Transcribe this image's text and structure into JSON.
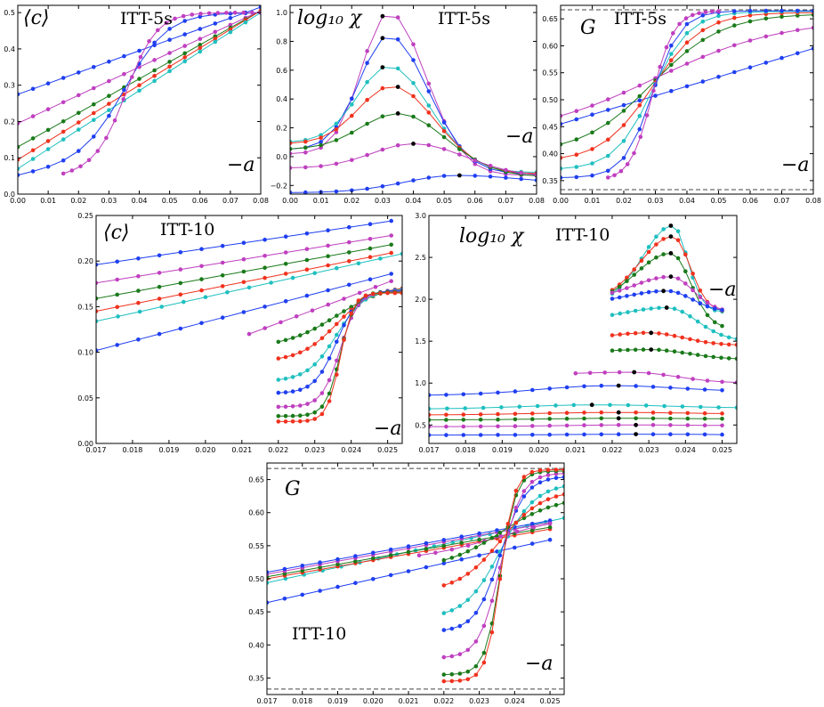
{
  "colors": {
    "blue": "#1f3ff0",
    "magenta": "#bf3fbf",
    "green": "#1a7a1a",
    "red": "#f0321e",
    "cyan": "#1fbfbf",
    "peak": "#000000",
    "axis": "#000000",
    "dash": "#444444"
  },
  "chart_data": [
    {
      "type": "line",
      "panel": "ITT-5s <c>",
      "title": "ITT-5s",
      "ylabel": "⟨c⟩",
      "xlabel": "−a",
      "xlim": [
        0,
        0.08
      ],
      "ylim": [
        0,
        0.52
      ],
      "xticks": [
        "0.00",
        "0.01",
        "0.02",
        "0.03",
        "0.04",
        "0.05",
        "0.06",
        "0.07",
        "0.08"
      ],
      "yticks": [
        "0.0",
        "0.1",
        "0.2",
        "0.3",
        "0.4",
        "0.5"
      ],
      "series": [
        {
          "color": "blue",
          "x0": 0.0,
          "x1": 0.08,
          "n": 17,
          "form": "lin",
          "y0": 0.275,
          "y1": 0.515
        },
        {
          "color": "magenta",
          "x0": 0.0,
          "x1": 0.08,
          "n": 17,
          "form": "lin",
          "y0": 0.195,
          "y1": 0.505
        },
        {
          "color": "green",
          "x0": 0.0,
          "x1": 0.08,
          "n": 17,
          "form": "lin",
          "y0": 0.13,
          "y1": 0.505
        },
        {
          "color": "red",
          "x0": 0.0,
          "x1": 0.08,
          "n": 17,
          "form": "lin",
          "y0": 0.095,
          "y1": 0.505
        },
        {
          "color": "cyan",
          "x0": 0.0,
          "x1": 0.08,
          "n": 17,
          "form": "lin",
          "y0": 0.07,
          "y1": 0.5
        },
        {
          "color": "blue",
          "x0": 0.0,
          "x1": 0.08,
          "n": 17,
          "form": "sig",
          "y0": 0.05,
          "y1": 0.5,
          "c": 0.036,
          "w": 0.007,
          "lo": 0.12
        },
        {
          "color": "magenta",
          "x0": 0.015,
          "x1": 0.08,
          "n": 24,
          "form": "sig",
          "y0": 0.05,
          "y1": 0.5,
          "c": 0.036,
          "w": 0.005,
          "lo": 0.08
        }
      ]
    },
    {
      "type": "line",
      "panel": "ITT-5s log10 chi",
      "title": "ITT-5s",
      "ylabel": "log₁₀ χ",
      "xlabel": "−a",
      "xlim": [
        0,
        0.08
      ],
      "ylim": [
        -0.26,
        1.05
      ],
      "xticks": [
        "0.00",
        "0.01",
        "0.02",
        "0.03",
        "0.04",
        "0.05",
        "0.06",
        "0.07",
        "0.08"
      ],
      "yticks": [
        "−0.2",
        "0.0",
        "0.2",
        "0.4",
        "0.6",
        "0.8",
        "1.0"
      ],
      "series": [
        {
          "color": "magenta",
          "x0": 0.0,
          "x1": 0.08,
          "n": 17,
          "form": "peak",
          "base": 0.02,
          "peak": 1.0,
          "c": 0.032,
          "wl": 0.013,
          "wr": 0.018,
          "end": -0.13
        },
        {
          "color": "blue",
          "x0": 0.0,
          "x1": 0.08,
          "n": 17,
          "form": "peak",
          "base": 0.05,
          "peak": 0.84,
          "c": 0.032,
          "wl": 0.014,
          "wr": 0.019,
          "end": -0.12
        },
        {
          "color": "cyan",
          "x0": 0.0,
          "x1": 0.08,
          "n": 17,
          "form": "peak",
          "base": 0.1,
          "peak": 0.63,
          "c": 0.032,
          "wl": 0.015,
          "wr": 0.02,
          "end": -0.11
        },
        {
          "color": "red",
          "x0": 0.0,
          "x1": 0.08,
          "n": 17,
          "form": "peak",
          "base": 0.09,
          "peak": 0.49,
          "c": 0.033,
          "wl": 0.016,
          "wr": 0.021,
          "end": -0.12
        },
        {
          "color": "green",
          "x0": 0.0,
          "x1": 0.08,
          "n": 17,
          "form": "peak",
          "base": 0.05,
          "peak": 0.3,
          "c": 0.035,
          "wl": 0.018,
          "wr": 0.023,
          "end": -0.14
        },
        {
          "color": "magenta",
          "x0": 0.0,
          "x1": 0.08,
          "n": 17,
          "form": "peak",
          "base": -0.08,
          "peak": 0.09,
          "c": 0.04,
          "wl": 0.02,
          "wr": 0.025,
          "end": -0.14
        },
        {
          "color": "blue",
          "x0": 0.0,
          "x1": 0.08,
          "n": 17,
          "form": "peak",
          "base": -0.25,
          "peak": -0.13,
          "c": 0.054,
          "wl": 0.025,
          "wr": 0.03,
          "end": -0.19
        }
      ]
    },
    {
      "type": "line",
      "panel": "ITT-5s G",
      "title": "ITT-5s",
      "ylabel": "G",
      "xlabel": "−a",
      "xlim": [
        0,
        0.08
      ],
      "ylim": [
        0.325,
        0.675
      ],
      "dashed": [
        0.6667,
        0.3333
      ],
      "xticks": [
        "0.00",
        "0.01",
        "0.02",
        "0.03",
        "0.04",
        "0.05",
        "0.06",
        "0.07",
        "0.08"
      ],
      "yticks": [
        "0.35",
        "0.40",
        "0.45",
        "0.50",
        "0.55",
        "0.60",
        "0.65"
      ],
      "series": [
        {
          "color": "blue",
          "x0": 0.0,
          "x1": 0.08,
          "n": 17,
          "form": "lin",
          "y0": 0.455,
          "y1": 0.595
        },
        {
          "color": "magenta",
          "x0": 0.0,
          "x1": 0.08,
          "n": 17,
          "form": "sig",
          "y0": 0.43,
          "y1": 0.65,
          "c": 0.03,
          "w": 0.02,
          "lo": 0.0
        },
        {
          "color": "green",
          "x0": 0.0,
          "x1": 0.08,
          "n": 17,
          "form": "sig",
          "y0": 0.4,
          "y1": 0.66,
          "c": 0.029,
          "w": 0.011,
          "lo": 0.0
        },
        {
          "color": "red",
          "x0": 0.0,
          "x1": 0.08,
          "n": 17,
          "form": "sig",
          "y0": 0.385,
          "y1": 0.662,
          "c": 0.029,
          "w": 0.008,
          "lo": 0.0
        },
        {
          "color": "cyan",
          "x0": 0.0,
          "x1": 0.08,
          "n": 17,
          "form": "sig",
          "y0": 0.37,
          "y1": 0.664,
          "c": 0.029,
          "w": 0.006,
          "lo": 0.0
        },
        {
          "color": "blue",
          "x0": 0.0,
          "x1": 0.08,
          "n": 17,
          "form": "sig",
          "y0": 0.355,
          "y1": 0.665,
          "c": 0.029,
          "w": 0.0045,
          "lo": 0.0
        },
        {
          "color": "magenta",
          "x0": 0.015,
          "x1": 0.05,
          "n": 18,
          "form": "sig",
          "y0": 0.35,
          "y1": 0.665,
          "c": 0.029,
          "w": 0.0035,
          "lo": 0.0
        }
      ]
    },
    {
      "type": "line",
      "panel": "ITT-10 <c>",
      "title": "ITT-10",
      "ylabel": "⟨c⟩",
      "xlabel": "−a",
      "xlim": [
        0.017,
        0.0254
      ],
      "ylim": [
        0,
        0.25
      ],
      "xticks": [
        "0.017",
        "0.018",
        "0.019",
        "0.020",
        "0.021",
        "0.022",
        "0.023",
        "0.024",
        "0.025"
      ],
      "yticks": [
        "0.00",
        "0.05",
        "0.10",
        "0.15",
        "0.20",
        "0.25"
      ],
      "series": [
        {
          "color": "blue",
          "x0": 0.017,
          "x1": 0.0251,
          "n": 15,
          "form": "lin",
          "y0": 0.196,
          "y1": 0.244
        },
        {
          "color": "magenta",
          "x0": 0.017,
          "x1": 0.0251,
          "n": 15,
          "form": "lin",
          "y0": 0.176,
          "y1": 0.228
        },
        {
          "color": "green",
          "x0": 0.017,
          "x1": 0.0251,
          "n": 15,
          "form": "lin",
          "y0": 0.159,
          "y1": 0.218
        },
        {
          "color": "red",
          "x0": 0.017,
          "x1": 0.0251,
          "n": 15,
          "form": "lin",
          "y0": 0.145,
          "y1": 0.209
        },
        {
          "color": "cyan",
          "x0": 0.017,
          "x1": 0.0254,
          "n": 15,
          "form": "lin",
          "y0": 0.134,
          "y1": 0.208
        },
        {
          "color": "blue",
          "x0": 0.017,
          "x1": 0.0251,
          "n": 15,
          "form": "lin",
          "y0": 0.102,
          "y1": 0.186
        },
        {
          "color": "magenta",
          "x0": 0.0212,
          "x1": 0.0251,
          "n": 10,
          "form": "lin",
          "y0": 0.12,
          "y1": 0.178
        },
        {
          "color": "green",
          "x0": 0.022,
          "x1": 0.0254,
          "n": 18,
          "form": "sig",
          "y0": 0.105,
          "y1": 0.175,
          "c": 0.0236,
          "w": 0.0007,
          "lo": 0.0
        },
        {
          "color": "red",
          "x0": 0.022,
          "x1": 0.0254,
          "n": 18,
          "form": "sig",
          "y0": 0.09,
          "y1": 0.172,
          "c": 0.0236,
          "w": 0.0005,
          "lo": 0.0
        },
        {
          "color": "cyan",
          "x0": 0.022,
          "x1": 0.0254,
          "n": 18,
          "form": "sig",
          "y0": 0.068,
          "y1": 0.17,
          "c": 0.0236,
          "w": 0.0004,
          "lo": 0.0
        },
        {
          "color": "blue",
          "x0": 0.022,
          "x1": 0.0254,
          "n": 18,
          "form": "sig",
          "y0": 0.055,
          "y1": 0.168,
          "c": 0.0236,
          "w": 0.0003,
          "lo": 0.0
        },
        {
          "color": "magenta",
          "x0": 0.022,
          "x1": 0.0254,
          "n": 18,
          "form": "sig",
          "y0": 0.04,
          "y1": 0.167,
          "c": 0.0237,
          "w": 0.00025,
          "lo": 0.0
        },
        {
          "color": "green",
          "x0": 0.022,
          "x1": 0.0254,
          "n": 18,
          "form": "sig",
          "y0": 0.03,
          "y1": 0.166,
          "c": 0.0237,
          "w": 0.0002,
          "lo": 0.0
        },
        {
          "color": "red",
          "x0": 0.022,
          "x1": 0.0254,
          "n": 18,
          "form": "sig",
          "y0": 0.024,
          "y1": 0.165,
          "c": 0.0237,
          "w": 0.00018,
          "lo": 0.0
        }
      ]
    },
    {
      "type": "line",
      "panel": "ITT-10 log10 chi",
      "title": "ITT-10",
      "ylabel": "log₁₀ χ",
      "xlabel": "−a",
      "xlim": [
        0.017,
        0.0254
      ],
      "ylim": [
        0.28,
        3.0
      ],
      "xticks": [
        "0.017",
        "0.018",
        "0.019",
        "0.020",
        "0.021",
        "0.022",
        "0.023",
        "0.024",
        "0.025"
      ],
      "yticks": [
        "0.5",
        "1.0",
        "1.5",
        "2.0",
        "2.5",
        "3.0"
      ],
      "series": [
        {
          "color": "cyan",
          "x0": 0.022,
          "x1": 0.025,
          "n": 16,
          "form": "peak",
          "base": 1.95,
          "peak": 2.88,
          "c": 0.02365,
          "wl": 0.0012,
          "wr": 0.0006,
          "end": 1.85
        },
        {
          "color": "red",
          "x0": 0.022,
          "x1": 0.025,
          "n": 16,
          "form": "peak",
          "base": 1.98,
          "peak": 2.75,
          "c": 0.02365,
          "wl": 0.0013,
          "wr": 0.0007,
          "end": 1.85
        },
        {
          "color": "green",
          "x0": 0.022,
          "x1": 0.025,
          "n": 16,
          "form": "peak",
          "base": 1.95,
          "peak": 2.55,
          "c": 0.0236,
          "wl": 0.0014,
          "wr": 0.0008,
          "end": 1.65
        },
        {
          "color": "magenta",
          "x0": 0.022,
          "x1": 0.025,
          "n": 16,
          "form": "peak",
          "base": 2.0,
          "peak": 2.27,
          "c": 0.0236,
          "wl": 0.0015,
          "wr": 0.0009,
          "end": 1.85
        },
        {
          "color": "blue",
          "x0": 0.022,
          "x1": 0.025,
          "n": 16,
          "form": "peak",
          "base": 1.95,
          "peak": 2.1,
          "c": 0.0235,
          "wl": 0.0016,
          "wr": 0.001,
          "end": 1.85
        },
        {
          "color": "cyan",
          "x0": 0.022,
          "x1": 0.0254,
          "n": 17,
          "form": "peak",
          "base": 1.75,
          "peak": 1.9,
          "c": 0.0235,
          "wl": 0.0017,
          "wr": 0.0012,
          "end": 1.5
        },
        {
          "color": "red",
          "x0": 0.022,
          "x1": 0.0254,
          "n": 17,
          "form": "peak",
          "base": 1.5,
          "peak": 1.6,
          "c": 0.023,
          "wl": 0.0018,
          "wr": 0.0014,
          "end": 1.45
        },
        {
          "color": "green",
          "x0": 0.022,
          "x1": 0.0254,
          "n": 17,
          "form": "peak",
          "base": 1.36,
          "peak": 1.4,
          "c": 0.023,
          "wl": 0.0018,
          "wr": 0.0016,
          "end": 1.28
        },
        {
          "color": "magenta",
          "x0": 0.021,
          "x1": 0.0254,
          "n": 12,
          "form": "peak",
          "base": 1.1,
          "peak": 1.13,
          "c": 0.0225,
          "wl": 0.002,
          "wr": 0.0018,
          "end": 1.0
        },
        {
          "color": "blue",
          "x0": 0.017,
          "x1": 0.025,
          "n": 18,
          "form": "peak",
          "base": 0.85,
          "peak": 0.97,
          "c": 0.022,
          "wl": 0.003,
          "wr": 0.0025,
          "end": 0.9
        },
        {
          "color": "cyan",
          "x0": 0.017,
          "x1": 0.0254,
          "n": 18,
          "form": "peak",
          "base": 0.69,
          "peak": 0.74,
          "c": 0.0216,
          "wl": 0.003,
          "wr": 0.003,
          "end": 0.7
        },
        {
          "color": "red",
          "x0": 0.017,
          "x1": 0.025,
          "n": 18,
          "form": "peak",
          "base": 0.62,
          "peak": 0.65,
          "c": 0.022,
          "wl": 0.003,
          "wr": 0.003,
          "end": 0.63
        },
        {
          "color": "green",
          "x0": 0.017,
          "x1": 0.025,
          "n": 18,
          "form": "peak",
          "base": 0.56,
          "peak": 0.58,
          "c": 0.0222,
          "wl": 0.003,
          "wr": 0.003,
          "end": 0.57
        },
        {
          "color": "magenta",
          "x0": 0.017,
          "x1": 0.025,
          "n": 18,
          "form": "peak",
          "base": 0.48,
          "peak": 0.5,
          "c": 0.0225,
          "wl": 0.003,
          "wr": 0.003,
          "end": 0.49
        },
        {
          "color": "blue",
          "x0": 0.017,
          "x1": 0.025,
          "n": 18,
          "form": "peak",
          "base": 0.38,
          "peak": 0.39,
          "c": 0.0228,
          "wl": 0.003,
          "wr": 0.003,
          "end": 0.38
        }
      ]
    },
    {
      "type": "line",
      "panel": "ITT-10 G",
      "title": "ITT-10",
      "ylabel": "G",
      "xlabel": "−a",
      "xlim": [
        0.017,
        0.0254
      ],
      "ylim": [
        0.325,
        0.675
      ],
      "dashed": [
        0.6667,
        0.3333
      ],
      "xticks": [
        "0.017",
        "0.018",
        "0.019",
        "0.020",
        "0.021",
        "0.022",
        "0.023",
        "0.024",
        "0.025"
      ],
      "yticks": [
        "0.35",
        "0.40",
        "0.45",
        "0.50",
        "0.55",
        "0.60",
        "0.65"
      ],
      "series": [
        {
          "color": "blue",
          "x0": 0.017,
          "x1": 0.025,
          "n": 17,
          "form": "lin",
          "y0": 0.464,
          "y1": 0.559
        },
        {
          "color": "cyan",
          "x0": 0.017,
          "x1": 0.0254,
          "n": 17,
          "form": "lin",
          "y0": 0.494,
          "y1": 0.592
        },
        {
          "color": "red",
          "x0": 0.017,
          "x1": 0.025,
          "n": 17,
          "form": "lin",
          "y0": 0.5,
          "y1": 0.575
        },
        {
          "color": "green",
          "x0": 0.017,
          "x1": 0.025,
          "n": 17,
          "form": "lin",
          "y0": 0.503,
          "y1": 0.578
        },
        {
          "color": "magenta",
          "x0": 0.017,
          "x1": 0.025,
          "n": 17,
          "form": "lin",
          "y0": 0.507,
          "y1": 0.585
        },
        {
          "color": "blue",
          "x0": 0.017,
          "x1": 0.025,
          "n": 17,
          "form": "lin",
          "y0": 0.51,
          "y1": 0.588
        },
        {
          "color": "magenta",
          "x0": 0.0213,
          "x1": 0.025,
          "n": 9,
          "form": "sig",
          "y0": 0.525,
          "y1": 0.6,
          "c": 0.0235,
          "w": 0.0012,
          "lo": 0.0
        },
        {
          "color": "green",
          "x0": 0.022,
          "x1": 0.0254,
          "n": 16,
          "form": "sig",
          "y0": 0.515,
          "y1": 0.625,
          "c": 0.0236,
          "w": 0.0008,
          "lo": 0.0
        },
        {
          "color": "cyan",
          "x0": 0.022,
          "x1": 0.0254,
          "n": 16,
          "form": "sig",
          "y0": 0.44,
          "y1": 0.645,
          "c": 0.0236,
          "w": 0.0005,
          "lo": 0.0
        },
        {
          "color": "red",
          "x0": 0.022,
          "x1": 0.0254,
          "n": 16,
          "form": "sig",
          "y0": 0.48,
          "y1": 0.635,
          "c": 0.0236,
          "w": 0.0006,
          "lo": 0.0
        },
        {
          "color": "blue",
          "x0": 0.022,
          "x1": 0.0254,
          "n": 16,
          "form": "sig",
          "y0": 0.42,
          "y1": 0.655,
          "c": 0.0236,
          "w": 0.00035,
          "lo": 0.0
        },
        {
          "color": "magenta",
          "x0": 0.022,
          "x1": 0.0254,
          "n": 16,
          "form": "sig",
          "y0": 0.38,
          "y1": 0.66,
          "c": 0.0236,
          "w": 0.0003,
          "lo": 0.0
        },
        {
          "color": "green",
          "x0": 0.022,
          "x1": 0.0254,
          "n": 16,
          "form": "sig",
          "y0": 0.355,
          "y1": 0.663,
          "c": 0.0236,
          "w": 0.00022,
          "lo": 0.0
        },
        {
          "color": "red",
          "x0": 0.022,
          "x1": 0.0254,
          "n": 16,
          "form": "sig",
          "y0": 0.345,
          "y1": 0.665,
          "c": 0.0236,
          "w": 0.0002,
          "lo": 0.0
        }
      ]
    }
  ]
}
